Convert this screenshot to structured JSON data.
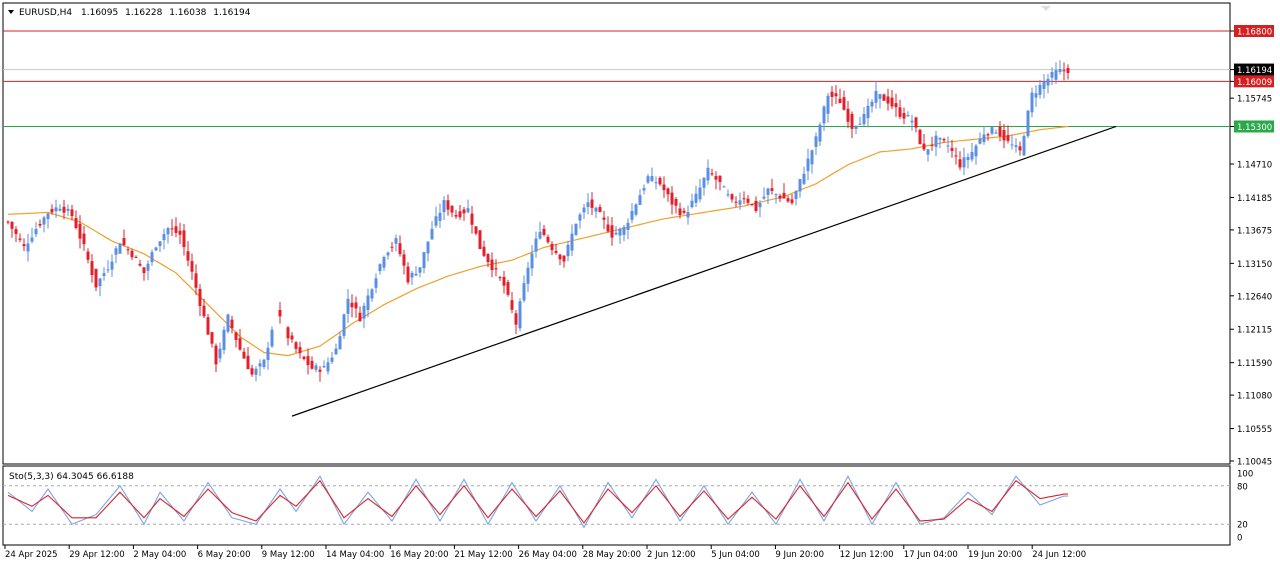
{
  "header": {
    "symbol": "EURUSD,H4",
    "open": "1.16095",
    "high": "1.16228",
    "low": "1.16038",
    "close": "1.16194"
  },
  "indicator": {
    "label": "Sto(5,3,3) 64.3045 66.6188",
    "levels": [
      "100",
      "80",
      "20",
      "0"
    ]
  },
  "colors": {
    "bull": "#5b8fe0",
    "bear": "#e0202a",
    "ma": "#f0a030",
    "trendline": "#000000",
    "resistance": "#d42020",
    "support": "#2aa84a",
    "stoch_main": "#7aa6e0",
    "stoch_signal": "#e0202a"
  },
  "chart_data": [
    {
      "type": "candlestick",
      "title": "EURUSD,H4",
      "ylim": [
        1.1003,
        1.171
      ],
      "yticks": [
        "1.16800",
        "1.16194",
        "1.16009",
        "1.15745",
        "1.15300",
        "1.14710",
        "1.14185",
        "1.13675",
        "1.13150",
        "1.12640",
        "1.12115",
        "1.11590",
        "1.11080",
        "1.10555",
        "1.10045"
      ],
      "xticks": [
        "24 Apr 2025",
        "29 Apr 12:00",
        "2 May 04:00",
        "6 May 20:00",
        "9 May 12:00",
        "14 May 04:00",
        "16 May 20:00",
        "21 May 12:00",
        "26 May 04:00",
        "28 May 20:00",
        "2 Jun 12:00",
        "5 Jun 04:00",
        "9 Jun 20:00",
        "12 Jun 12:00",
        "17 Jun 04:00",
        "19 Jun 20:00",
        "24 Jun 12:00"
      ],
      "price_anchors": [
        [
          0,
          1.138
        ],
        [
          4,
          1.134
        ],
        [
          7,
          1.137
        ],
        [
          10,
          1.1395
        ],
        [
          13,
          1.1405
        ],
        [
          16,
          1.139
        ],
        [
          19,
          1.134
        ],
        [
          22,
          1.128
        ],
        [
          25,
          1.131
        ],
        [
          28,
          1.135
        ],
        [
          31,
          1.133
        ],
        [
          34,
          1.13
        ],
        [
          37,
          1.1345
        ],
        [
          40,
          1.137
        ],
        [
          43,
          1.136
        ],
        [
          46,
          1.13
        ],
        [
          49,
          1.123
        ],
        [
          52,
          1.116
        ],
        [
          55,
          1.123
        ],
        [
          58,
          1.118
        ],
        [
          61,
          1.114
        ],
        [
          64,
          1.116
        ],
        [
          67,
          1.124
        ],
        [
          70,
          1.12
        ],
        [
          73,
          1.117
        ],
        [
          76,
          1.115
        ],
        [
          79,
          1.115
        ],
        [
          82,
          1.118
        ],
        [
          85,
          1.126
        ],
        [
          88,
          1.123
        ],
        [
          91,
          1.128
        ],
        [
          94,
          1.133
        ],
        [
          97,
          1.135
        ],
        [
          100,
          1.129
        ],
        [
          103,
          1.131
        ],
        [
          106,
          1.137
        ],
        [
          109,
          1.141
        ],
        [
          112,
          1.139
        ],
        [
          115,
          1.14
        ],
        [
          118,
          1.134
        ],
        [
          121,
          1.131
        ],
        [
          124,
          1.128
        ],
        [
          127,
          1.122
        ],
        [
          130,
          1.131
        ],
        [
          133,
          1.137
        ],
        [
          136,
          1.134
        ],
        [
          139,
          1.132
        ],
        [
          142,
          1.138
        ],
        [
          145,
          1.141
        ],
        [
          148,
          1.139
        ],
        [
          151,
          1.136
        ],
        [
          154,
          1.137
        ],
        [
          157,
          1.141
        ],
        [
          160,
          1.145
        ],
        [
          163,
          1.144
        ],
        [
          166,
          1.141
        ],
        [
          169,
          1.139
        ],
        [
          172,
          1.142
        ],
        [
          175,
          1.146
        ],
        [
          178,
          1.144
        ],
        [
          181,
          1.141
        ],
        [
          184,
          1.142
        ],
        [
          187,
          1.14
        ],
        [
          190,
          1.143
        ],
        [
          193,
          1.142
        ],
        [
          196,
          1.141
        ],
        [
          199,
          1.146
        ],
        [
          202,
          1.151
        ],
        [
          205,
          1.158
        ],
        [
          208,
          1.157
        ],
        [
          211,
          1.153
        ],
        [
          214,
          1.1545
        ],
        [
          217,
          1.158
        ],
        [
          220,
          1.157
        ],
        [
          223,
          1.155
        ],
        [
          226,
          1.154
        ],
        [
          229,
          1.149
        ],
        [
          232,
          1.151
        ],
        [
          235,
          1.15
        ],
        [
          238,
          1.147
        ],
        [
          241,
          1.149
        ],
        [
          244,
          1.152
        ],
        [
          247,
          1.1525
        ],
        [
          250,
          1.1505
        ],
        [
          253,
          1.149
        ],
        [
          256,
          1.158
        ],
        [
          259,
          1.16
        ],
        [
          262,
          1.1615
        ],
        [
          265,
          1.1619
        ]
      ],
      "moving_average_anchors": [
        [
          0,
          1.1392
        ],
        [
          10,
          1.1395
        ],
        [
          18,
          1.138
        ],
        [
          26,
          1.135
        ],
        [
          34,
          1.133
        ],
        [
          42,
          1.13
        ],
        [
          50,
          1.125
        ],
        [
          58,
          1.12
        ],
        [
          64,
          1.1175
        ],
        [
          70,
          1.117
        ],
        [
          78,
          1.1185
        ],
        [
          86,
          1.122
        ],
        [
          94,
          1.125
        ],
        [
          102,
          1.1275
        ],
        [
          110,
          1.1295
        ],
        [
          118,
          1.131
        ],
        [
          126,
          1.132
        ],
        [
          134,
          1.134
        ],
        [
          144,
          1.1355
        ],
        [
          154,
          1.137
        ],
        [
          164,
          1.1385
        ],
        [
          174,
          1.1395
        ],
        [
          184,
          1.1405
        ],
        [
          194,
          1.142
        ],
        [
          202,
          1.144
        ],
        [
          210,
          1.147
        ],
        [
          218,
          1.149
        ],
        [
          226,
          1.1495
        ],
        [
          234,
          1.1505
        ],
        [
          242,
          1.151
        ],
        [
          250,
          1.1515
        ],
        [
          258,
          1.1525
        ],
        [
          265,
          1.153
        ]
      ],
      "horizontal_levels": [
        {
          "label": "1.16800",
          "price": 1.168,
          "color": "resistance"
        },
        {
          "label": "1.16009",
          "price": 1.16009,
          "color": "resistance"
        },
        {
          "label": "1.15300",
          "price": 1.153,
          "color": "support"
        }
      ],
      "current_price": {
        "label": "1.16194",
        "price": 1.16194
      },
      "trendline": {
        "from": [
          71,
          1.1075
        ],
        "to": [
          277,
          1.153
        ]
      }
    },
    {
      "type": "line",
      "title": "Sto(5,3,3) 64.3045 66.6188",
      "ylim": [
        0,
        100
      ],
      "series": [
        {
          "name": "%K",
          "anchors": [
            [
              0,
              70
            ],
            [
              6,
              40
            ],
            [
              10,
              75
            ],
            [
              16,
              20
            ],
            [
              22,
              35
            ],
            [
              28,
              80
            ],
            [
              34,
              20
            ],
            [
              38,
              70
            ],
            [
              44,
              25
            ],
            [
              50,
              85
            ],
            [
              56,
              30
            ],
            [
              62,
              20
            ],
            [
              68,
              75
            ],
            [
              72,
              40
            ],
            [
              78,
              95
            ],
            [
              84,
              20
            ],
            [
              90,
              70
            ],
            [
              96,
              25
            ],
            [
              102,
              90
            ],
            [
              108,
              25
            ],
            [
              114,
              90
            ],
            [
              120,
              20
            ],
            [
              126,
              85
            ],
            [
              132,
              25
            ],
            [
              138,
              80
            ],
            [
              144,
              15
            ],
            [
              150,
              85
            ],
            [
              156,
              30
            ],
            [
              162,
              90
            ],
            [
              168,
              25
            ],
            [
              174,
              80
            ],
            [
              180,
              20
            ],
            [
              186,
              70
            ],
            [
              192,
              20
            ],
            [
              198,
              90
            ],
            [
              204,
              25
            ],
            [
              210,
              95
            ],
            [
              216,
              20
            ],
            [
              222,
              85
            ],
            [
              228,
              20
            ],
            [
              234,
              30
            ],
            [
              240,
              70
            ],
            [
              246,
              35
            ],
            [
              252,
              95
            ],
            [
              258,
              50
            ],
            [
              264,
              64
            ]
          ]
        },
        {
          "name": "%D",
          "anchors": [
            [
              0,
              65
            ],
            [
              6,
              48
            ],
            [
              10,
              65
            ],
            [
              16,
              30
            ],
            [
              22,
              30
            ],
            [
              28,
              70
            ],
            [
              34,
              30
            ],
            [
              38,
              60
            ],
            [
              44,
              32
            ],
            [
              50,
              75
            ],
            [
              56,
              38
            ],
            [
              62,
              25
            ],
            [
              68,
              65
            ],
            [
              72,
              48
            ],
            [
              78,
              88
            ],
            [
              84,
              30
            ],
            [
              90,
              60
            ],
            [
              96,
              32
            ],
            [
              102,
              80
            ],
            [
              108,
              35
            ],
            [
              114,
              80
            ],
            [
              120,
              30
            ],
            [
              126,
              75
            ],
            [
              132,
              32
            ],
            [
              138,
              72
            ],
            [
              144,
              22
            ],
            [
              150,
              75
            ],
            [
              156,
              38
            ],
            [
              162,
              80
            ],
            [
              168,
              32
            ],
            [
              174,
              72
            ],
            [
              180,
              28
            ],
            [
              186,
              62
            ],
            [
              192,
              28
            ],
            [
              198,
              80
            ],
            [
              204,
              32
            ],
            [
              210,
              85
            ],
            [
              216,
              28
            ],
            [
              222,
              75
            ],
            [
              228,
              25
            ],
            [
              234,
              28
            ],
            [
              240,
              60
            ],
            [
              246,
              40
            ],
            [
              252,
              88
            ],
            [
              258,
              60
            ],
            [
              264,
              67
            ]
          ]
        }
      ]
    }
  ]
}
